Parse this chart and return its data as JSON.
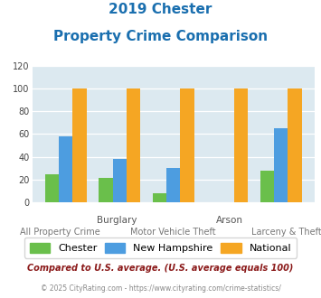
{
  "title_line1": "2019 Chester",
  "title_line2": "Property Crime Comparison",
  "title_color": "#1a6faf",
  "categories": [
    "All Property Crime",
    "Burglary",
    "Motor Vehicle Theft",
    "Arson",
    "Larceny & Theft"
  ],
  "cat_labels_top": [
    "",
    "Burglary",
    "",
    "Arson",
    ""
  ],
  "cat_labels_bottom": [
    "All Property Crime",
    "",
    "Motor Vehicle Theft",
    "",
    "Larceny & Theft"
  ],
  "chester": [
    25,
    22,
    8,
    0,
    28
  ],
  "new_hampshire": [
    58,
    38,
    30,
    0,
    65
  ],
  "national": [
    100,
    100,
    100,
    100,
    100
  ],
  "chester_color": "#6abf4b",
  "nh_color": "#4d9de0",
  "national_color": "#f5a623",
  "background_color": "#dce9f0",
  "ylim": [
    0,
    120
  ],
  "yticks": [
    0,
    20,
    40,
    60,
    80,
    100,
    120
  ],
  "legend_labels": [
    "Chester",
    "New Hampshire",
    "National"
  ],
  "footnote1": "Compared to U.S. average. (U.S. average equals 100)",
  "footnote2": "© 2025 CityRating.com - https://www.cityrating.com/crime-statistics/",
  "footnote1_color": "#8b1a1a",
  "footnote2_color": "#888888"
}
